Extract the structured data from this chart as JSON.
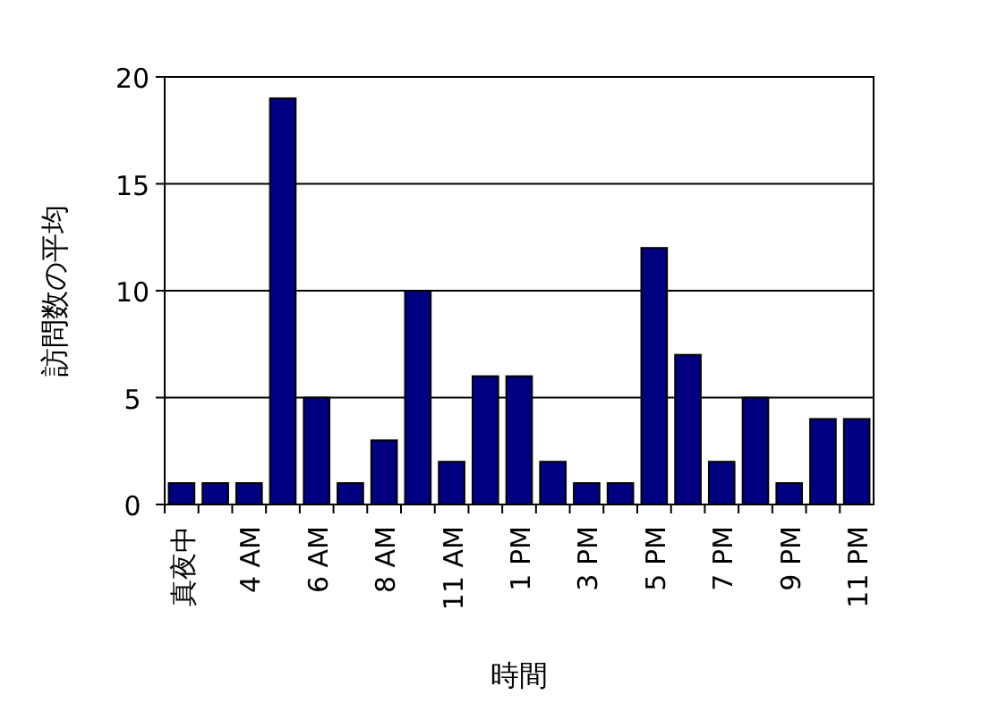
{
  "chart_data": {
    "type": "bar",
    "xlabel": "時間",
    "ylabel": "訪問数の平均",
    "categories": [
      "真夜中",
      null,
      "4 AM",
      null,
      "6 AM",
      null,
      "8 AM",
      null,
      "11 AM",
      null,
      "1 PM",
      null,
      "3 PM",
      null,
      "5 PM",
      null,
      "7 PM",
      null,
      "9 PM",
      null,
      "11 PM"
    ],
    "values": [
      1,
      1,
      1,
      19,
      5,
      1,
      3,
      10,
      2,
      6,
      6,
      2,
      1,
      1,
      12,
      7,
      2,
      5,
      1,
      4,
      4
    ],
    "color": "#000080",
    "ylim": [
      0,
      20
    ],
    "yticks": [
      0,
      5,
      10,
      15,
      20
    ],
    "grid": "y"
  }
}
